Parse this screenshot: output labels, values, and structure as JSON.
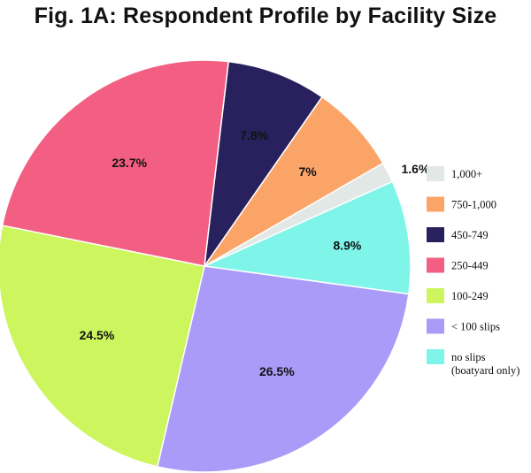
{
  "chart_data": {
    "type": "pie",
    "title": "Fig. 1A: Respondent Profile by Facility Size",
    "start_angle_deg": -30,
    "slices": [
      {
        "name": "1,000+",
        "value": 1.6,
        "label": "1.6%",
        "color": "#e2e8e6"
      },
      {
        "name": "no slips (boatyard only)",
        "value": 8.9,
        "label": "8.9%",
        "color": "#7ff5ea"
      },
      {
        "name": "< 100 slips",
        "value": 26.5,
        "label": "26.5%",
        "color": "#a99bf7"
      },
      {
        "name": "100-249",
        "value": 24.5,
        "label": "24.5%",
        "color": "#ccf55e"
      },
      {
        "name": "250-449",
        "value": 23.7,
        "label": "23.7%",
        "color": "#f25f82"
      },
      {
        "name": "450-749",
        "value": 7.8,
        "label": "7.8%",
        "color": "#28215e"
      },
      {
        "name": "750-1,000",
        "value": 7,
        "label": "7%",
        "color": "#fba468"
      }
    ],
    "legend": {
      "placement": "right",
      "items": [
        {
          "lines": [
            "1,000+"
          ],
          "color": "#e2e8e6"
        },
        {
          "lines": [
            "750-1,000"
          ],
          "color": "#fba468"
        },
        {
          "lines": [
            "450-749"
          ],
          "color": "#28215e"
        },
        {
          "lines": [
            "250-449"
          ],
          "color": "#f25f82"
        },
        {
          "lines": [
            "100-249"
          ],
          "color": "#ccf55e"
        },
        {
          "lines": [
            "< 100 slips"
          ],
          "color": "#a99bf7"
        },
        {
          "lines": [
            "no slips",
            "(boatyard only)"
          ],
          "color": "#7ff5ea"
        }
      ]
    }
  }
}
